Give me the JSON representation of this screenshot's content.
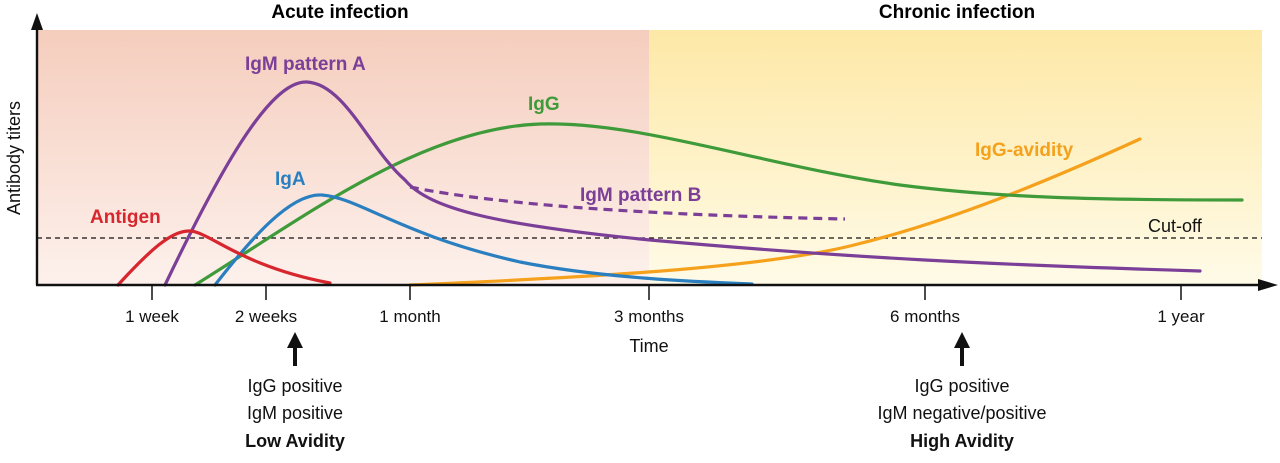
{
  "titles": {
    "acute": "Acute infection",
    "chronic": "Chronic infection"
  },
  "axes": {
    "ylabel": "Antibody titers",
    "xlabel": "Time",
    "ticks": [
      "1 week",
      "2 weeks",
      "1 month",
      "3 months",
      "6 months",
      "1 year"
    ]
  },
  "curves": {
    "antigen": {
      "label": "Antigen",
      "color": "#d7262e"
    },
    "igm_a": {
      "label": "IgM pattern A",
      "color": "#7b3f98"
    },
    "igm_b": {
      "label": "IgM pattern B",
      "color": "#7b3f98"
    },
    "iga": {
      "label": "IgA",
      "color": "#2a7fc0"
    },
    "igg": {
      "label": "IgG",
      "color": "#3f9a3a"
    },
    "avidity": {
      "label": "IgG-avidity",
      "color": "#f5a11c"
    }
  },
  "cutoff": {
    "label": "Cut-off"
  },
  "notes": {
    "early": {
      "line1": "IgG positive",
      "line2": "IgM positive",
      "line3": "Low Avidity"
    },
    "late": {
      "line1": "IgG positive",
      "line2": "IgM negative/positive",
      "line3": "High Avidity"
    }
  }
}
